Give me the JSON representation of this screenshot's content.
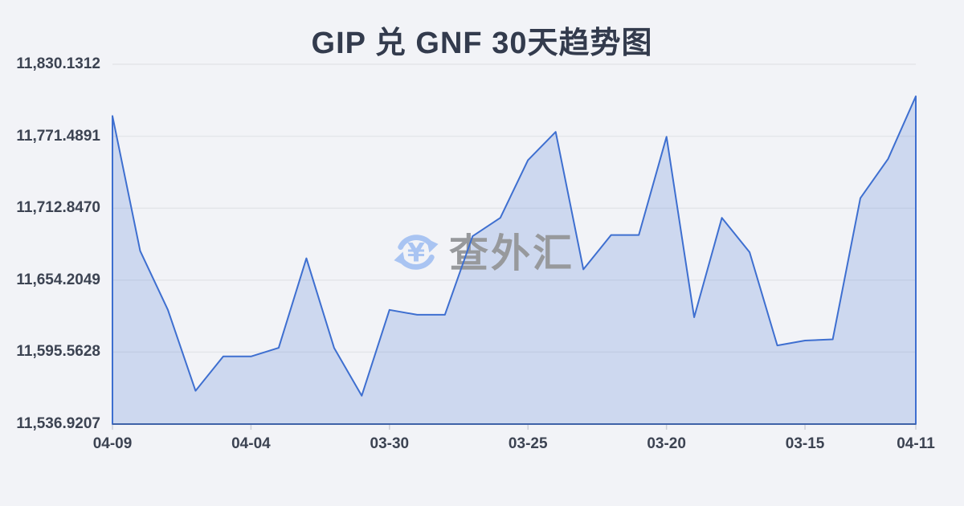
{
  "page": {
    "background": "#f2f3f7"
  },
  "header": {
    "title": "GIP 兑 GNF 30天趋势图"
  },
  "watermark": {
    "icon": "currency-exchange-icon",
    "icon_color": "#a9c4f2",
    "text": "查外汇",
    "text_color": "#97999c"
  },
  "chart_data": {
    "type": "area",
    "title": "GIP 兑 GNF 30天趋势图",
    "xlabel": "",
    "ylabel": "",
    "ylim": [
      11536.9207,
      11830.1312
    ],
    "y_tick_labels": [
      "11,830.1312",
      "11,771.4891",
      "11,712.8470",
      "11,654.2049",
      "11,595.5628",
      "11,536.9207"
    ],
    "x_tick_labels": [
      "04-09",
      "04-04",
      "03-30",
      "03-25",
      "03-20",
      "03-15",
      "04-11"
    ],
    "x_tick_indices": [
      0,
      5,
      10,
      15,
      20,
      25,
      29
    ],
    "values": [
      11788,
      11678,
      11630,
      11564,
      11592,
      11592,
      11599,
      11672,
      11599,
      11560,
      11630,
      11626,
      11626,
      11690,
      11705,
      11752,
      11775,
      11663,
      11691,
      11691,
      11771,
      11624,
      11705,
      11677,
      11601,
      11605,
      11606,
      11721,
      11753,
      11804
    ],
    "grid": true,
    "legend": false,
    "line_color": "#3e6fd0",
    "fill_color": "rgba(62,111,208,0.2)",
    "axis_color": "#3f62a8",
    "grid_color": "#e4e6ea",
    "tick_color": "#cdd0d8"
  }
}
